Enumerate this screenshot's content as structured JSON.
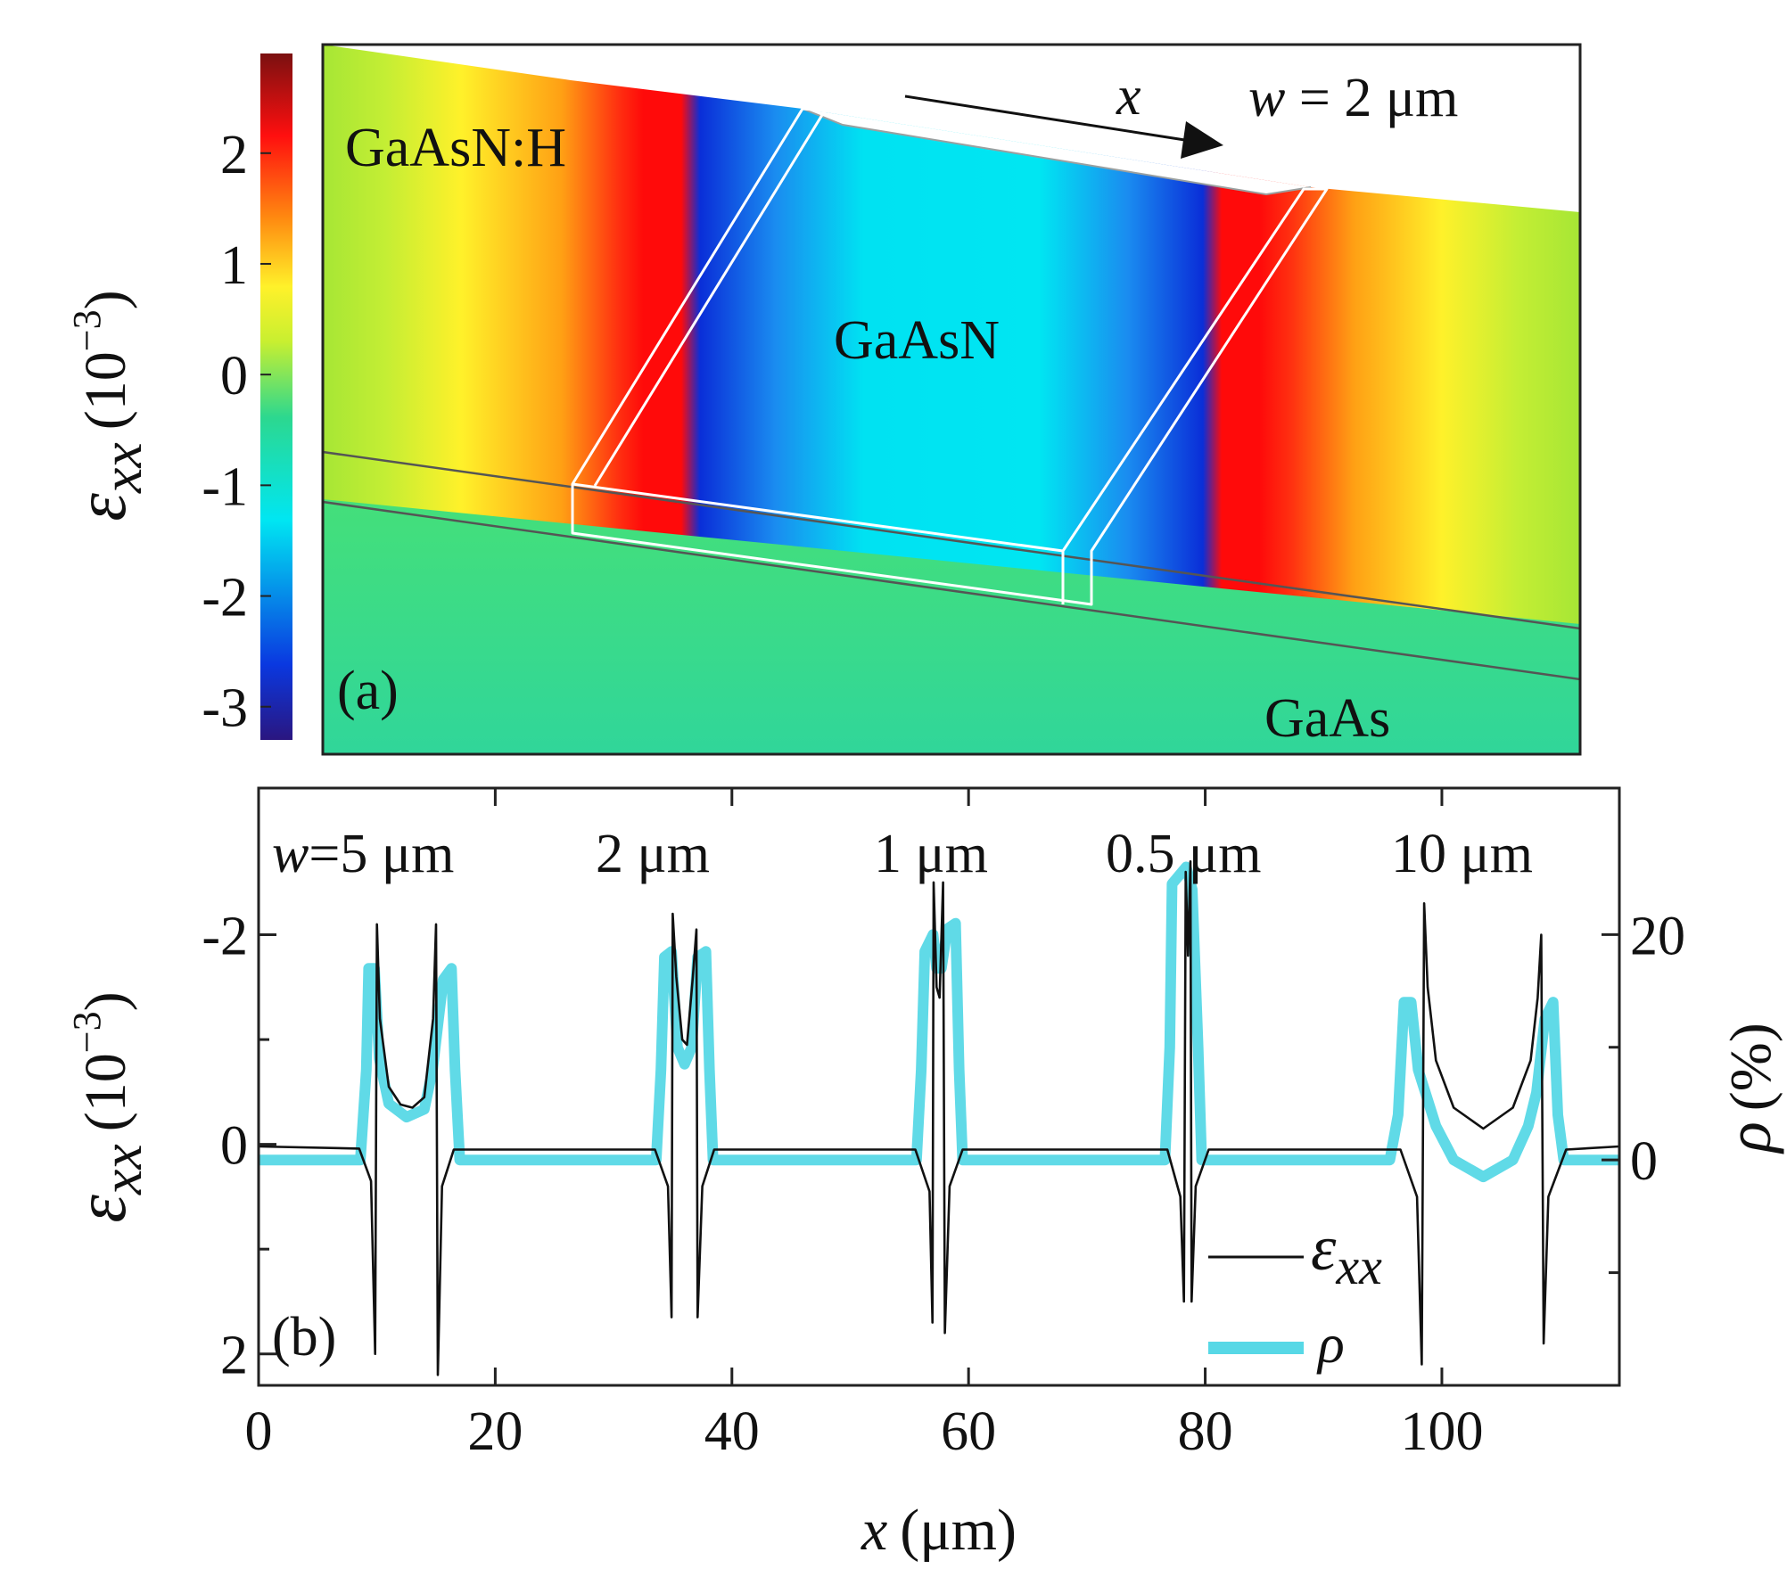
{
  "colors": {
    "background": "#ffffff",
    "axis": "#222222",
    "strain_line": "#111111",
    "rho_line": "#57d8e6",
    "colormap": [
      "#2a1680",
      "#0a38e0",
      "#00e6f2",
      "#2cd88f",
      "#c8ef30",
      "#fff12a",
      "#ff8a10",
      "#ff0f0f",
      "#7a1010"
    ]
  },
  "panel_a": {
    "colorbar": {
      "axis_label": "ε",
      "axis_label_sub": "xx",
      "axis_label_unit": "(10",
      "axis_label_exp": "−3",
      "axis_label_close": ")",
      "ticks": [
        "2",
        "1",
        "0",
        "-1",
        "-2",
        "-3"
      ],
      "tick_values": [
        2,
        1,
        0,
        -1,
        -2,
        -3
      ],
      "range": [
        -3.3,
        2.9
      ]
    },
    "labels": {
      "top_left": "GaAsN:H",
      "center": "GaAsN",
      "bottom_right": "GaAs",
      "panel": "(a)",
      "arrow_var": "x",
      "width_w": "w",
      "width_value": " = 2 μm"
    }
  },
  "panel_b": {
    "width_labels": [
      {
        "prefix": "w",
        "text": "=5 μm"
      },
      {
        "prefix": "",
        "text": "2 μm"
      },
      {
        "prefix": "",
        "text": "1 μm"
      },
      {
        "prefix": "",
        "text": "0.5 μm"
      },
      {
        "prefix": "",
        "text": "10 μm"
      }
    ],
    "panel_label": "(b)",
    "legend": [
      {
        "symbol": "ε",
        "sub": "xx",
        "color": "#111111"
      },
      {
        "symbol": "ρ",
        "sub": "",
        "color": "#57d8e6"
      }
    ]
  },
  "chart_data": {
    "type": "line",
    "x": {
      "label": "x",
      "unit": "(μm)",
      "range": [
        0,
        115
      ],
      "ticks": [
        "0",
        "20",
        "40",
        "60",
        "80",
        "100"
      ],
      "tick_values": [
        0,
        20,
        40,
        60,
        80,
        100
      ]
    },
    "y_left": {
      "label": "ε",
      "label_sub": "xx",
      "unit": "(10",
      "exp": "−3",
      "close": ")",
      "range": [
        2.3,
        -3.4
      ],
      "inverted": true,
      "ticks": [
        "-2",
        "0",
        "2"
      ],
      "tick_values": [
        -2,
        0,
        2
      ]
    },
    "y_right": {
      "label": "ρ",
      "unit": "(%)",
      "range": [
        -20,
        33
      ],
      "ticks": [
        "0",
        "20"
      ],
      "tick_values": [
        0,
        20
      ]
    },
    "features": [
      {
        "width_um": 5,
        "x_start": 10,
        "x_end": 15
      },
      {
        "width_um": 2,
        "x_start": 35,
        "x_end": 37
      },
      {
        "width_um": 1,
        "x_start": 57,
        "x_end": 58
      },
      {
        "width_um": 0.5,
        "x_start": 78.3,
        "x_end": 78.8
      },
      {
        "width_um": 10,
        "x_start": 98.5,
        "x_end": 108.5
      }
    ],
    "series": [
      {
        "name": "ε",
        "axis": "left",
        "points": [
          [
            0,
            0.02
          ],
          [
            8.5,
            0.04
          ],
          [
            9.5,
            0.35
          ],
          [
            9.85,
            2.0
          ],
          [
            10.0,
            -2.1
          ],
          [
            10.25,
            -1.2
          ],
          [
            11,
            -0.55
          ],
          [
            12,
            -0.38
          ],
          [
            13,
            -0.35
          ],
          [
            14,
            -0.45
          ],
          [
            14.75,
            -1.2
          ],
          [
            15.0,
            -2.1
          ],
          [
            15.15,
            2.2
          ],
          [
            15.5,
            0.4
          ],
          [
            16.5,
            0.05
          ],
          [
            33.5,
            0.05
          ],
          [
            34.6,
            0.4
          ],
          [
            34.9,
            1.65
          ],
          [
            35.0,
            -2.2
          ],
          [
            35.3,
            -1.6
          ],
          [
            35.8,
            -1.0
          ],
          [
            36.2,
            -0.95
          ],
          [
            36.7,
            -1.6
          ],
          [
            37.0,
            -2.05
          ],
          [
            37.1,
            1.65
          ],
          [
            37.5,
            0.4
          ],
          [
            38.5,
            0.05
          ],
          [
            55.5,
            0.05
          ],
          [
            56.7,
            0.45
          ],
          [
            56.95,
            1.7
          ],
          [
            57.05,
            -2.5
          ],
          [
            57.3,
            -1.5
          ],
          [
            57.55,
            -1.4
          ],
          [
            57.85,
            -2.5
          ],
          [
            58.0,
            1.8
          ],
          [
            58.4,
            0.4
          ],
          [
            59.5,
            0.05
          ],
          [
            76.8,
            0.05
          ],
          [
            77.9,
            0.5
          ],
          [
            78.2,
            1.5
          ],
          [
            78.35,
            -2.6
          ],
          [
            78.55,
            -1.8
          ],
          [
            78.75,
            -2.7
          ],
          [
            78.85,
            1.5
          ],
          [
            79.2,
            0.4
          ],
          [
            80.3,
            0.05
          ],
          [
            96.5,
            0.05
          ],
          [
            97.9,
            0.5
          ],
          [
            98.3,
            2.1
          ],
          [
            98.5,
            -2.3
          ],
          [
            98.8,
            -1.5
          ],
          [
            99.5,
            -0.8
          ],
          [
            101,
            -0.35
          ],
          [
            103.5,
            -0.15
          ],
          [
            106,
            -0.35
          ],
          [
            107.5,
            -0.8
          ],
          [
            108.1,
            -1.4
          ],
          [
            108.4,
            -2.0
          ],
          [
            108.6,
            1.9
          ],
          [
            109.0,
            0.5
          ],
          [
            110.5,
            0.05
          ],
          [
            115,
            0.02
          ]
        ]
      },
      {
        "name": "ρ",
        "axis": "right",
        "points": [
          [
            0,
            0
          ],
          [
            8.6,
            0
          ],
          [
            9.1,
            8
          ],
          [
            9.3,
            17
          ],
          [
            9.8,
            17
          ],
          [
            10.2,
            9
          ],
          [
            11,
            5
          ],
          [
            12.5,
            3.8
          ],
          [
            14,
            4.5
          ],
          [
            14.7,
            8
          ],
          [
            15.6,
            16
          ],
          [
            16.3,
            17
          ],
          [
            16.6,
            8
          ],
          [
            17.0,
            0
          ],
          [
            33.6,
            0
          ],
          [
            34.0,
            8
          ],
          [
            34.3,
            18
          ],
          [
            34.9,
            18.5
          ],
          [
            35.4,
            10
          ],
          [
            36.0,
            8.5
          ],
          [
            36.6,
            10
          ],
          [
            37.1,
            18
          ],
          [
            37.8,
            18.5
          ],
          [
            38.1,
            8
          ],
          [
            38.4,
            0
          ],
          [
            55.6,
            0
          ],
          [
            56.0,
            8
          ],
          [
            56.3,
            18.5
          ],
          [
            57.0,
            20
          ],
          [
            57.3,
            17
          ],
          [
            57.7,
            17
          ],
          [
            58.2,
            20.5
          ],
          [
            58.9,
            21
          ],
          [
            59.2,
            8
          ],
          [
            59.5,
            0
          ],
          [
            76.6,
            0
          ],
          [
            77.0,
            10
          ],
          [
            77.2,
            24.5
          ],
          [
            78.4,
            26
          ],
          [
            78.9,
            24
          ],
          [
            79.4,
            10
          ],
          [
            79.7,
            0
          ],
          [
            95.6,
            0
          ],
          [
            96.3,
            4
          ],
          [
            96.8,
            14
          ],
          [
            97.4,
            14
          ],
          [
            98.0,
            8
          ],
          [
            99.5,
            3
          ],
          [
            101,
            0
          ],
          [
            103.5,
            -1.5
          ],
          [
            106,
            0
          ],
          [
            107.3,
            3
          ],
          [
            108.0,
            6
          ],
          [
            108.7,
            12.5
          ],
          [
            109.4,
            14
          ],
          [
            109.8,
            4
          ],
          [
            110.3,
            0
          ],
          [
            115,
            0
          ]
        ]
      }
    ]
  }
}
